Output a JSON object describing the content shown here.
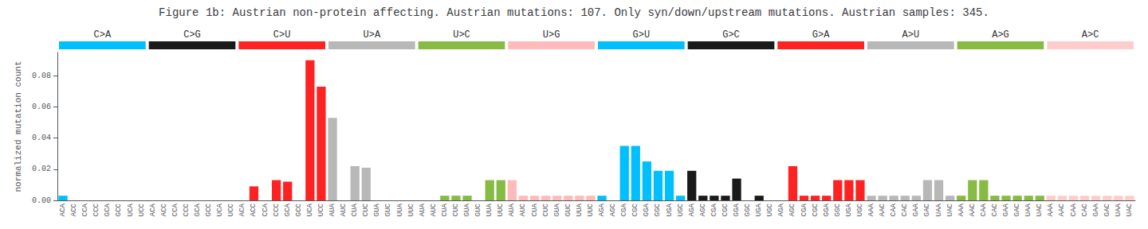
{
  "chart_data": {
    "type": "bar",
    "title": "Figure 1b: Austrian non-protein affecting. Austrian mutations: 107. Only syn/down/upstream mutations. Austrian samples: 345.",
    "y_label": "normalized mutation count",
    "categories": [
      "ACA",
      "ACC",
      "CCA",
      "CCC",
      "GCA",
      "GCC",
      "UCA",
      "UCC",
      "ACA",
      "ACC",
      "CCA",
      "CCC",
      "GCA",
      "GCC",
      "UCA",
      "UCC",
      "ACA",
      "ACC",
      "CCA",
      "CCC",
      "GCA",
      "GCC",
      "UCA",
      "UCC",
      "AUA",
      "AUC",
      "CUA",
      "CUC",
      "GUA",
      "GUC",
      "UUA",
      "UUC",
      "AUA",
      "AUC",
      "CUA",
      "CUC",
      "GUA",
      "GUC",
      "UUA",
      "UUC",
      "AUA",
      "AUC",
      "CUA",
      "CUC",
      "GUA",
      "GUC",
      "UUA",
      "UUC",
      "AGA",
      "AGC",
      "CGA",
      "CGC",
      "GGA",
      "GGC",
      "UGA",
      "UGC",
      "AGA",
      "AGC",
      "CGA",
      "CGC",
      "GGA",
      "GGC",
      "UGA",
      "UGC",
      "AGA",
      "AGC",
      "CGA",
      "CGC",
      "GGA",
      "GGC",
      "UGA",
      "UGC",
      "AAA",
      "AAC",
      "CAA",
      "CAC",
      "GAA",
      "GAC",
      "UAA",
      "UAC",
      "AAA",
      "AAC",
      "CAA",
      "CAC",
      "GAA",
      "GAC",
      "UAA",
      "UAC",
      "AAA",
      "AAC",
      "CAA",
      "CAC",
      "GAA",
      "GAC",
      "UAA",
      "UAC"
    ],
    "values": [
      0.003,
      0.0,
      0.0,
      0.0,
      0.0,
      0.0,
      0.0,
      0.0,
      0.0,
      0.0,
      0.0,
      0.0,
      0.0,
      0.0,
      0.0,
      0.0,
      0.0,
      0.009,
      0.0,
      0.013,
      0.012,
      0.0,
      0.09,
      0.073,
      0.053,
      0.0,
      0.022,
      0.021,
      0.0,
      0.0,
      0.0,
      0.0,
      0.0,
      0.0,
      0.003,
      0.003,
      0.003,
      0.0,
      0.013,
      0.013,
      0.013,
      0.003,
      0.003,
      0.003,
      0.003,
      0.003,
      0.003,
      0.003,
      0.003,
      0.0,
      0.035,
      0.035,
      0.025,
      0.019,
      0.019,
      0.003,
      0.019,
      0.003,
      0.003,
      0.003,
      0.014,
      0.0,
      0.003,
      0.0,
      0.0,
      0.022,
      0.003,
      0.003,
      0.003,
      0.013,
      0.013,
      0.013,
      0.003,
      0.003,
      0.003,
      0.003,
      0.003,
      0.013,
      0.013,
      0.003,
      0.003,
      0.013,
      0.013,
      0.003,
      0.003,
      0.003,
      0.003,
      0.003,
      0.003,
      0.003,
      0.003,
      0.003,
      0.003,
      0.003,
      0.003,
      0.003
    ],
    "colors": [
      "#00bfff",
      "#00bfff",
      "#00bfff",
      "#00bfff",
      "#00bfff",
      "#00bfff",
      "#00bfff",
      "#00bfff",
      "#1a1a1a",
      "#1a1a1a",
      "#1a1a1a",
      "#1a1a1a",
      "#1a1a1a",
      "#1a1a1a",
      "#1a1a1a",
      "#1a1a1a",
      "#ff2222",
      "#ff2222",
      "#ff2222",
      "#ff2222",
      "#ff2222",
      "#ff2222",
      "#ff2222",
      "#ff2222",
      "#b8b8b8",
      "#b8b8b8",
      "#b8b8b8",
      "#b8b8b8",
      "#b8b8b8",
      "#b8b8b8",
      "#b8b8b8",
      "#b8b8b8",
      "#88bb44",
      "#88bb44",
      "#88bb44",
      "#88bb44",
      "#88bb44",
      "#88bb44",
      "#88bb44",
      "#88bb44",
      "#ffbbbb",
      "#ffbbbb",
      "#ffbbbb",
      "#ffbbbb",
      "#ffbbbb",
      "#ffbbbb",
      "#ffbbbb",
      "#ffbbbb",
      "#00bfff",
      "#00bfff",
      "#00bfff",
      "#00bfff",
      "#00bfff",
      "#00bfff",
      "#00bfff",
      "#00bfff",
      "#1a1a1a",
      "#1a1a1a",
      "#1a1a1a",
      "#1a1a1a",
      "#1a1a1a",
      "#1a1a1a",
      "#1a1a1a",
      "#1a1a1a",
      "#ff2222",
      "#ff2222",
      "#ff2222",
      "#ff2222",
      "#ff2222",
      "#ff2222",
      "#ff2222",
      "#ff2222",
      "#b8b8b8",
      "#b8b8b8",
      "#b8b8b8",
      "#b8b8b8",
      "#b8b8b8",
      "#b8b8b8",
      "#b8b8b8",
      "#b8b8b8",
      "#88bb44",
      "#88bb44",
      "#88bb44",
      "#88bb44",
      "#88bb44",
      "#88bb44",
      "#88bb44",
      "#88bb44",
      "#ffcccc",
      "#ffcccc",
      "#ffcccc",
      "#ffcccc",
      "#ffcccc",
      "#ffcccc",
      "#ffcccc",
      "#ffcccc"
    ],
    "annotations": [
      {
        "text": "C>A",
        "color": "#00bfff"
      },
      {
        "text": "C>G",
        "color": "#1a1a1a"
      },
      {
        "text": "C>U",
        "color": "#ff2222"
      },
      {
        "text": "U>A",
        "color": "#b8b8b8"
      },
      {
        "text": "U>C",
        "color": "#88bb44"
      },
      {
        "text": "U>G",
        "color": "#ffbbbb"
      },
      {
        "text": "G>U",
        "color": "#00bfff"
      },
      {
        "text": "G>C",
        "color": "#1a1a1a"
      },
      {
        "text": "G>A",
        "color": "#ff2222"
      },
      {
        "text": "A>U",
        "color": "#b8b8b8"
      },
      {
        "text": "A>G",
        "color": "#88bb44"
      },
      {
        "text": "A>C",
        "color": "#ffcccc"
      }
    ],
    "ylim": [
      0,
      0.095
    ],
    "yticks": [
      {
        "value": 0.0,
        "label": "0.00"
      },
      {
        "value": 0.02,
        "label": "0.02"
      },
      {
        "value": 0.04,
        "label": "0.04"
      },
      {
        "value": 0.06,
        "label": "0.06"
      },
      {
        "value": 0.08,
        "label": "0.08"
      }
    ],
    "grid": false
  }
}
